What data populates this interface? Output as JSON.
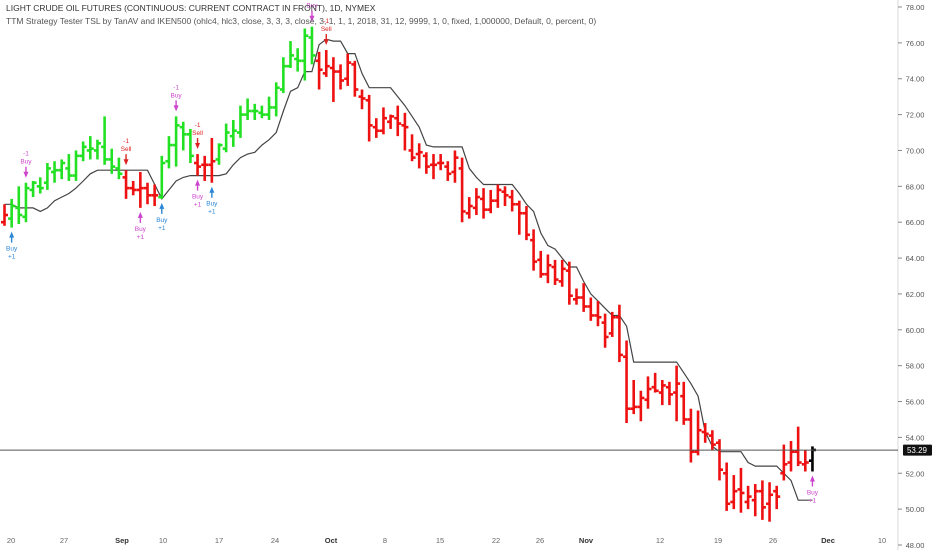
{
  "header": {
    "title": "LIGHT CRUDE OIL FUTURES (CONTINUOUS: CURRENT CONTRACT IN FRONT), 1D, NYMEX",
    "indicator": "TTM Strategy Tester TSL by TanAV and IKEN500 (ohlc4, hlc3, close, 3, 3, 3, close, 3, 1, 1, 1, 2018, 31, 12, 9999, 1, 0, fixed, 1,000000, Default, 0, percent, 0)"
  },
  "colors": {
    "up": "#22e022",
    "down": "#ee1111",
    "current": "#000000",
    "stop_line": "#444444",
    "buy_label": "#cc44cc",
    "buy_arrow": "#cc44cc",
    "buy_arrow2": "#2a86d6",
    "sell_label": "#dd2222",
    "price_line": "#555555",
    "price_badge_bg": "#111111",
    "price_badge_fg": "#ffffff"
  },
  "price_badge": "53.29",
  "chart_data": {
    "type": "ohlc",
    "ylim": [
      48,
      79
    ],
    "y_ticks": [
      "78.00",
      "76.00",
      "74.00",
      "72.00",
      "70.00",
      "68.00",
      "66.00",
      "64.00",
      "62.00",
      "60.00",
      "58.00",
      "56.00",
      "54.00",
      "52.00",
      "50.00",
      "48.00"
    ],
    "x_ticks": [
      "20",
      "27",
      "Sep",
      "10",
      "17",
      "24",
      "Oct",
      "8",
      "15",
      "22",
      "26",
      "Nov",
      "12",
      "19",
      "26",
      "Dec",
      "10"
    ],
    "current_price": 53.29,
    "bars": [
      {
        "o": 66.0,
        "h": 67.0,
        "l": 65.8,
        "c": 66.4,
        "d": "dn"
      },
      {
        "o": 66.2,
        "h": 67.3,
        "l": 65.7,
        "c": 66.9,
        "d": "up"
      },
      {
        "o": 66.8,
        "h": 68.0,
        "l": 65.9,
        "c": 66.4,
        "d": "up"
      },
      {
        "o": 66.3,
        "h": 68.2,
        "l": 66.0,
        "c": 67.9,
        "d": "up"
      },
      {
        "o": 67.8,
        "h": 68.3,
        "l": 67.4,
        "c": 68.2,
        "d": "up"
      },
      {
        "o": 68.0,
        "h": 68.5,
        "l": 67.6,
        "c": 67.9,
        "d": "up"
      },
      {
        "o": 68.2,
        "h": 69.3,
        "l": 67.8,
        "c": 69.0,
        "d": "up"
      },
      {
        "o": 68.8,
        "h": 69.4,
        "l": 68.2,
        "c": 68.9,
        "d": "up"
      },
      {
        "o": 68.9,
        "h": 69.5,
        "l": 68.4,
        "c": 69.3,
        "d": "up"
      },
      {
        "o": 69.0,
        "h": 69.8,
        "l": 68.3,
        "c": 68.6,
        "d": "up"
      },
      {
        "o": 68.6,
        "h": 70.0,
        "l": 68.3,
        "c": 69.7,
        "d": "up"
      },
      {
        "o": 69.7,
        "h": 70.5,
        "l": 69.4,
        "c": 70.2,
        "d": "up"
      },
      {
        "o": 70.0,
        "h": 70.8,
        "l": 69.5,
        "c": 70.1,
        "d": "up"
      },
      {
        "o": 70.0,
        "h": 70.6,
        "l": 69.5,
        "c": 70.4,
        "d": "up"
      },
      {
        "o": 70.2,
        "h": 71.9,
        "l": 69.2,
        "c": 69.5,
        "d": "up"
      },
      {
        "o": 69.5,
        "h": 70.1,
        "l": 68.7,
        "c": 69.1,
        "d": "up"
      },
      {
        "o": 69.0,
        "h": 69.6,
        "l": 68.4,
        "c": 68.7,
        "d": "up"
      },
      {
        "o": 68.5,
        "h": 68.9,
        "l": 67.3,
        "c": 67.9,
        "d": "dn"
      },
      {
        "o": 67.9,
        "h": 68.3,
        "l": 67.5,
        "c": 67.8,
        "d": "dn"
      },
      {
        "o": 67.8,
        "h": 68.8,
        "l": 66.8,
        "c": 67.9,
        "d": "dn"
      },
      {
        "o": 67.9,
        "h": 68.2,
        "l": 67.0,
        "c": 67.5,
        "d": "dn"
      },
      {
        "o": 67.5,
        "h": 68.1,
        "l": 66.9,
        "c": 67.5,
        "d": "dn"
      },
      {
        "o": 67.4,
        "h": 69.7,
        "l": 67.3,
        "c": 69.3,
        "d": "up"
      },
      {
        "o": 69.4,
        "h": 70.8,
        "l": 69.0,
        "c": 70.3,
        "d": "up"
      },
      {
        "o": 70.3,
        "h": 71.9,
        "l": 69.1,
        "c": 71.4,
        "d": "up"
      },
      {
        "o": 71.3,
        "h": 71.6,
        "l": 70.0,
        "c": 70.9,
        "d": "up"
      },
      {
        "o": 70.9,
        "h": 71.2,
        "l": 69.3,
        "c": 69.7,
        "d": "up"
      },
      {
        "o": 69.3,
        "h": 69.8,
        "l": 68.6,
        "c": 69.1,
        "d": "dn"
      },
      {
        "o": 69.2,
        "h": 69.7,
        "l": 68.3,
        "c": 69.2,
        "d": "dn"
      },
      {
        "o": 69.2,
        "h": 70.7,
        "l": 68.2,
        "c": 69.4,
        "d": "dn"
      },
      {
        "o": 69.5,
        "h": 70.4,
        "l": 69.2,
        "c": 70.3,
        "d": "up"
      },
      {
        "o": 70.1,
        "h": 71.5,
        "l": 69.9,
        "c": 71.0,
        "d": "up"
      },
      {
        "o": 70.8,
        "h": 71.7,
        "l": 70.2,
        "c": 71.1,
        "d": "up"
      },
      {
        "o": 71.0,
        "h": 72.5,
        "l": 70.7,
        "c": 72.0,
        "d": "up"
      },
      {
        "o": 72.0,
        "h": 72.9,
        "l": 71.7,
        "c": 72.2,
        "d": "up"
      },
      {
        "o": 72.2,
        "h": 72.6,
        "l": 71.7,
        "c": 72.2,
        "d": "up"
      },
      {
        "o": 72.1,
        "h": 72.5,
        "l": 71.8,
        "c": 72.0,
        "d": "up"
      },
      {
        "o": 72.0,
        "h": 73.0,
        "l": 71.7,
        "c": 72.4,
        "d": "up"
      },
      {
        "o": 72.4,
        "h": 73.8,
        "l": 71.9,
        "c": 73.5,
        "d": "up"
      },
      {
        "o": 73.4,
        "h": 75.2,
        "l": 73.2,
        "c": 74.7,
        "d": "up"
      },
      {
        "o": 74.7,
        "h": 76.1,
        "l": 74.6,
        "c": 75.3,
        "d": "up"
      },
      {
        "o": 75.1,
        "h": 75.7,
        "l": 74.4,
        "c": 75.0,
        "d": "up"
      },
      {
        "o": 75.0,
        "h": 76.8,
        "l": 73.9,
        "c": 76.4,
        "d": "up"
      },
      {
        "o": 76.3,
        "h": 76.9,
        "l": 74.8,
        "c": 75.3,
        "d": "up"
      },
      {
        "o": 75.0,
        "h": 75.5,
        "l": 73.4,
        "c": 74.5,
        "d": "dn"
      },
      {
        "o": 74.3,
        "h": 75.6,
        "l": 74.1,
        "c": 74.7,
        "d": "dn"
      },
      {
        "o": 74.6,
        "h": 75.2,
        "l": 72.7,
        "c": 74.4,
        "d": "dn"
      },
      {
        "o": 74.4,
        "h": 74.8,
        "l": 73.4,
        "c": 73.9,
        "d": "dn"
      },
      {
        "o": 74.0,
        "h": 75.4,
        "l": 73.6,
        "c": 74.9,
        "d": "dn"
      },
      {
        "o": 74.8,
        "h": 75.0,
        "l": 73.0,
        "c": 73.4,
        "d": "dn"
      },
      {
        "o": 73.0,
        "h": 73.4,
        "l": 72.3,
        "c": 72.9,
        "d": "dn"
      },
      {
        "o": 72.8,
        "h": 73.1,
        "l": 70.5,
        "c": 71.4,
        "d": "dn"
      },
      {
        "o": 71.3,
        "h": 71.8,
        "l": 70.7,
        "c": 71.1,
        "d": "dn"
      },
      {
        "o": 71.1,
        "h": 72.4,
        "l": 70.9,
        "c": 71.8,
        "d": "dn"
      },
      {
        "o": 71.6,
        "h": 72.0,
        "l": 71.2,
        "c": 71.9,
        "d": "dn"
      },
      {
        "o": 71.8,
        "h": 72.5,
        "l": 70.8,
        "c": 71.5,
        "d": "dn"
      },
      {
        "o": 71.4,
        "h": 72.1,
        "l": 70.0,
        "c": 71.3,
        "d": "dn"
      },
      {
        "o": 70.0,
        "h": 70.9,
        "l": 69.4,
        "c": 69.6,
        "d": "dn"
      },
      {
        "o": 69.8,
        "h": 70.4,
        "l": 69.0,
        "c": 69.9,
        "d": "dn"
      },
      {
        "o": 69.7,
        "h": 69.9,
        "l": 68.7,
        "c": 69.1,
        "d": "dn"
      },
      {
        "o": 69.2,
        "h": 69.8,
        "l": 68.4,
        "c": 69.2,
        "d": "dn"
      },
      {
        "o": 69.3,
        "h": 69.8,
        "l": 68.9,
        "c": 69.3,
        "d": "dn"
      },
      {
        "o": 69.1,
        "h": 69.4,
        "l": 68.3,
        "c": 68.7,
        "d": "dn"
      },
      {
        "o": 68.8,
        "h": 70.0,
        "l": 68.2,
        "c": 69.6,
        "d": "dn"
      },
      {
        "o": 69.0,
        "h": 69.6,
        "l": 66.0,
        "c": 66.6,
        "d": "dn"
      },
      {
        "o": 66.5,
        "h": 67.4,
        "l": 66.2,
        "c": 66.9,
        "d": "dn"
      },
      {
        "o": 66.8,
        "h": 67.9,
        "l": 66.4,
        "c": 67.4,
        "d": "dn"
      },
      {
        "o": 67.3,
        "h": 67.9,
        "l": 66.2,
        "c": 66.7,
        "d": "dn"
      },
      {
        "o": 66.7,
        "h": 67.8,
        "l": 66.5,
        "c": 67.2,
        "d": "dn"
      },
      {
        "o": 67.2,
        "h": 68.1,
        "l": 66.8,
        "c": 67.8,
        "d": "dn"
      },
      {
        "o": 67.7,
        "h": 68.0,
        "l": 66.9,
        "c": 67.5,
        "d": "dn"
      },
      {
        "o": 67.4,
        "h": 67.8,
        "l": 66.6,
        "c": 67.0,
        "d": "dn"
      },
      {
        "o": 67.0,
        "h": 67.2,
        "l": 65.3,
        "c": 66.5,
        "d": "dn"
      },
      {
        "o": 66.5,
        "h": 66.9,
        "l": 65.0,
        "c": 65.3,
        "d": "dn"
      },
      {
        "o": 65.0,
        "h": 65.6,
        "l": 63.3,
        "c": 63.8,
        "d": "dn"
      },
      {
        "o": 63.9,
        "h": 64.4,
        "l": 62.9,
        "c": 63.1,
        "d": "dn"
      },
      {
        "o": 63.1,
        "h": 64.2,
        "l": 62.6,
        "c": 63.6,
        "d": "dn"
      },
      {
        "o": 63.5,
        "h": 63.9,
        "l": 62.5,
        "c": 62.8,
        "d": "dn"
      },
      {
        "o": 62.7,
        "h": 63.9,
        "l": 62.4,
        "c": 63.4,
        "d": "dn"
      },
      {
        "o": 63.3,
        "h": 63.8,
        "l": 61.4,
        "c": 61.9,
        "d": "dn"
      },
      {
        "o": 61.7,
        "h": 62.3,
        "l": 61.4,
        "c": 61.8,
        "d": "dn"
      },
      {
        "o": 61.8,
        "h": 62.6,
        "l": 61.0,
        "c": 61.3,
        "d": "dn"
      },
      {
        "o": 61.3,
        "h": 61.8,
        "l": 60.5,
        "c": 60.8,
        "d": "dn"
      },
      {
        "o": 60.8,
        "h": 61.6,
        "l": 60.2,
        "c": 60.7,
        "d": "dn"
      },
      {
        "o": 60.4,
        "h": 60.9,
        "l": 59.0,
        "c": 59.6,
        "d": "dn"
      },
      {
        "o": 59.8,
        "h": 61.0,
        "l": 59.6,
        "c": 60.7,
        "d": "dn"
      },
      {
        "o": 60.7,
        "h": 61.4,
        "l": 58.2,
        "c": 58.6,
        "d": "dn"
      },
      {
        "o": 58.5,
        "h": 59.4,
        "l": 54.8,
        "c": 55.6,
        "d": "dn"
      },
      {
        "o": 55.6,
        "h": 57.2,
        "l": 55.3,
        "c": 55.7,
        "d": "dn"
      },
      {
        "o": 55.7,
        "h": 56.6,
        "l": 54.9,
        "c": 56.2,
        "d": "dn"
      },
      {
        "o": 56.1,
        "h": 57.4,
        "l": 55.6,
        "c": 56.7,
        "d": "dn"
      },
      {
        "o": 56.8,
        "h": 57.6,
        "l": 56.5,
        "c": 56.6,
        "d": "dn"
      },
      {
        "o": 56.5,
        "h": 57.2,
        "l": 55.8,
        "c": 56.9,
        "d": "dn"
      },
      {
        "o": 56.8,
        "h": 57.1,
        "l": 55.8,
        "c": 56.4,
        "d": "dn"
      },
      {
        "o": 56.5,
        "h": 58.0,
        "l": 54.9,
        "c": 57.0,
        "d": "dn"
      },
      {
        "o": 56.3,
        "h": 57.1,
        "l": 54.7,
        "c": 55.0,
        "d": "dn"
      },
      {
        "o": 55.0,
        "h": 55.6,
        "l": 52.6,
        "c": 53.2,
        "d": "dn"
      },
      {
        "o": 53.2,
        "h": 55.5,
        "l": 53.0,
        "c": 54.4,
        "d": "dn"
      },
      {
        "o": 54.3,
        "h": 54.8,
        "l": 53.7,
        "c": 54.2,
        "d": "dn"
      },
      {
        "o": 54.1,
        "h": 54.4,
        "l": 53.3,
        "c": 53.6,
        "d": "dn"
      },
      {
        "o": 53.7,
        "h": 53.9,
        "l": 51.6,
        "c": 52.2,
        "d": "dn"
      },
      {
        "o": 52.0,
        "h": 52.6,
        "l": 49.9,
        "c": 50.3,
        "d": "dn"
      },
      {
        "o": 50.4,
        "h": 51.9,
        "l": 50.0,
        "c": 51.0,
        "d": "dn"
      },
      {
        "o": 51.1,
        "h": 52.3,
        "l": 49.8,
        "c": 50.9,
        "d": "dn"
      },
      {
        "o": 50.4,
        "h": 51.3,
        "l": 50.0,
        "c": 50.7,
        "d": "dn"
      },
      {
        "o": 50.5,
        "h": 51.4,
        "l": 49.6,
        "c": 51.0,
        "d": "dn"
      },
      {
        "o": 51.0,
        "h": 51.6,
        "l": 49.4,
        "c": 50.1,
        "d": "dn"
      },
      {
        "o": 50.3,
        "h": 51.5,
        "l": 49.3,
        "c": 50.8,
        "d": "dn"
      },
      {
        "o": 51.0,
        "h": 51.3,
        "l": 50.0,
        "c": 50.7,
        "d": "dn"
      },
      {
        "o": 52.0,
        "h": 53.6,
        "l": 51.6,
        "c": 52.5,
        "d": "dn"
      },
      {
        "o": 52.6,
        "h": 53.8,
        "l": 52.1,
        "c": 53.2,
        "d": "dn"
      },
      {
        "o": 53.2,
        "h": 54.6,
        "l": 52.4,
        "c": 52.6,
        "d": "dn"
      },
      {
        "o": 52.5,
        "h": 53.3,
        "l": 52.1,
        "c": 52.6,
        "d": "dn"
      },
      {
        "o": 52.7,
        "h": 53.5,
        "l": 52.1,
        "c": 53.3,
        "d": "cur"
      }
    ],
    "stop_line": [
      67.0,
      67.0,
      66.8,
      66.8,
      66.8,
      66.6,
      66.8,
      67.2,
      67.4,
      67.6,
      67.9,
      68.3,
      68.7,
      68.9,
      68.9,
      68.9,
      68.9,
      68.9,
      68.9,
      68.9,
      68.9,
      68.1,
      67.3,
      67.8,
      68.3,
      68.5,
      68.6,
      68.6,
      68.6,
      68.6,
      68.6,
      68.7,
      69.2,
      69.6,
      69.8,
      69.9,
      70.3,
      70.6,
      71.0,
      72.2,
      73.3,
      73.5,
      74.4,
      74.4,
      75.9,
      76.2,
      76.1,
      76.1,
      75.4,
      75.4,
      74.3,
      73.5,
      73.5,
      73.5,
      73.5,
      73.0,
      72.5,
      71.9,
      71.3,
      70.3,
      70.2,
      70.2,
      70.2,
      70.2,
      70.2,
      69.0,
      68.5,
      68.1,
      68.1,
      68.1,
      68.1,
      68.1,
      67.6,
      67.0,
      66.6,
      65.4,
      64.7,
      64.5,
      64.0,
      63.5,
      63.5,
      62.7,
      62.0,
      61.6,
      61.2,
      60.8,
      60.8,
      60.2,
      58.2,
      58.2,
      58.2,
      58.2,
      58.2,
      58.2,
      58.2,
      57.6,
      57.0,
      56.3,
      54.3,
      53.5,
      53.2,
      53.2,
      53.2,
      53.2,
      52.6,
      52.4,
      52.4,
      52.4,
      52.4,
      52.0,
      51.6,
      50.5,
      50.5,
      50.5
    ],
    "signals": [
      {
        "bar": 1,
        "type": "buy",
        "labels": [
          "Buy",
          "+1"
        ],
        "arrow_color": "buy_arrow2"
      },
      {
        "bar": 3,
        "type": "buy",
        "labels": [
          "-1",
          "Buy"
        ],
        "arrow_color": "buy_arrow"
      },
      {
        "bar": 17,
        "type": "sell",
        "labels": [
          "-1",
          "Sell"
        ]
      },
      {
        "bar": 19,
        "type": "buy",
        "labels": [
          "Buy",
          "+1"
        ],
        "arrow_color": "buy_arrow"
      },
      {
        "bar": 22,
        "type": "buy",
        "labels": [
          "Buy",
          "+1"
        ],
        "arrow_color": "buy_arrow2"
      },
      {
        "bar": 24,
        "type": "buy",
        "labels": [
          "-1",
          "Buy"
        ],
        "arrow_color": "buy_arrow"
      },
      {
        "bar": 27,
        "type": "sell",
        "labels": [
          "-1",
          "Sell"
        ]
      },
      {
        "bar": 27,
        "type": "buy",
        "labels": [
          "Buy",
          "+1"
        ],
        "arrow_color": "buy_arrow"
      },
      {
        "bar": 29,
        "type": "buy",
        "labels": [
          "Buy",
          "+1"
        ],
        "arrow_color": "buy_arrow2"
      },
      {
        "bar": 43,
        "type": "buy",
        "labels": [
          "-1",
          "Buy"
        ],
        "arrow_color": "buy_arrow"
      },
      {
        "bar": 45,
        "type": "sell",
        "labels": [
          "-1",
          "Sell"
        ]
      },
      {
        "bar": 113,
        "type": "buy",
        "labels": [
          "Buy",
          "+1"
        ],
        "arrow_color": "buy_arrow"
      }
    ]
  }
}
